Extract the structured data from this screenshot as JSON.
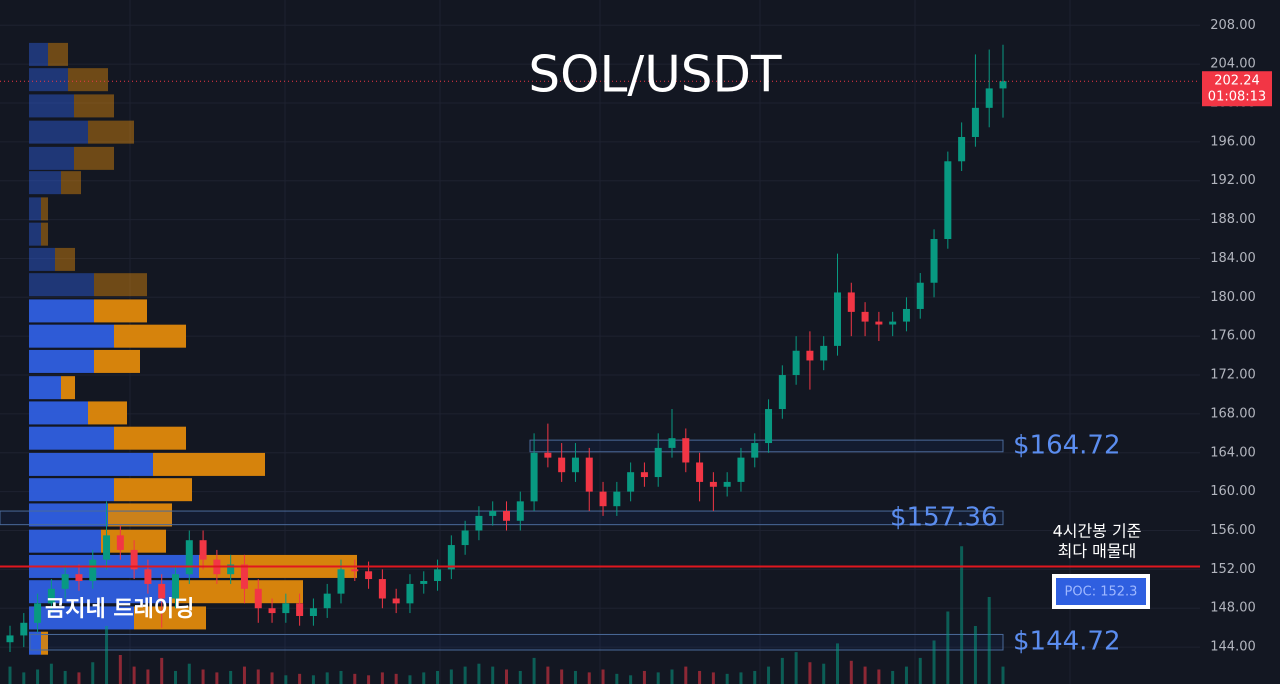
{
  "chart_data": {
    "type": "candlestick",
    "title": "SOL/USDT",
    "watermark": "곰지네 트레이딩",
    "ylim": [
      140.2,
      210.6
    ],
    "yticks": [
      {
        "value": 144,
        "label": "144.00"
      },
      {
        "value": 148,
        "label": "148.00"
      },
      {
        "value": 152,
        "label": "152.00"
      },
      {
        "value": 156,
        "label": "156.00"
      },
      {
        "value": 160,
        "label": "160.00"
      },
      {
        "value": 164,
        "label": "164.00"
      },
      {
        "value": 168,
        "label": "168.00"
      },
      {
        "value": 172,
        "label": "172.00"
      },
      {
        "value": 176,
        "label": "176.00"
      },
      {
        "value": 180,
        "label": "180.00"
      },
      {
        "value": 184,
        "label": "184.00"
      },
      {
        "value": 188,
        "label": "188.00"
      },
      {
        "value": 192,
        "label": "192.00"
      },
      {
        "value": 196,
        "label": "196.00"
      },
      {
        "value": 200,
        "label": "200.00"
      },
      {
        "value": 204,
        "label": "204.00"
      },
      {
        "value": 208,
        "label": "208.00"
      }
    ],
    "grid": true,
    "up_color": "#089981",
    "down_color": "#f23645",
    "open": [
      144.5,
      145.2,
      146.5,
      148.5,
      150,
      151.5,
      150.8,
      153,
      155.5,
      154,
      152,
      150.5,
      149,
      151.5,
      155,
      153,
      151.5,
      152.5,
      150,
      148,
      147.5,
      148.5,
      147.2,
      148,
      149.5,
      152,
      151.8,
      151,
      149,
      148.5,
      150.5,
      150.8,
      152,
      154.5,
      156,
      157.5,
      158,
      157,
      159,
      164,
      163.5,
      162,
      163.5,
      160,
      158.5,
      160,
      162,
      161.5,
      164.5,
      165.5,
      163,
      161,
      160.5,
      161,
      163.5,
      165,
      168.5,
      172,
      174.5,
      173.5,
      175,
      180.5,
      178.5,
      177.5,
      177.2,
      177.5,
      178.8,
      181.5,
      186,
      194,
      196.5,
      199.5,
      201.5
    ],
    "high": [
      146.2,
      147.5,
      149.5,
      151,
      152.5,
      152.5,
      154,
      159,
      156.5,
      155,
      153,
      151.5,
      152.5,
      156,
      156,
      154,
      153.5,
      153.5,
      151,
      149,
      149.5,
      149.5,
      149,
      150.5,
      153,
      153,
      152.8,
      152,
      150,
      151.5,
      151.8,
      153,
      155.5,
      157,
      158.5,
      159,
      159,
      160,
      166,
      167,
      165,
      165,
      164.5,
      161,
      161,
      163,
      163,
      166,
      168.5,
      166.5,
      164,
      162,
      162,
      164.5,
      166,
      169.5,
      173,
      176,
      176.5,
      176,
      184.5,
      181.5,
      179.5,
      178.5,
      178.5,
      180,
      182.5,
      187,
      195,
      198,
      205,
      205.5,
      206
    ],
    "low": [
      143.5,
      144,
      145.5,
      147.5,
      149,
      149.8,
      150,
      152,
      153,
      151,
      149.5,
      146,
      148,
      150.5,
      152,
      150.5,
      150.5,
      148.5,
      146.5,
      146.5,
      146.5,
      146.2,
      146.2,
      147,
      148.5,
      150.8,
      150,
      148,
      147.5,
      147.5,
      149.5,
      149.8,
      151,
      153.5,
      155,
      156.5,
      156,
      156,
      158,
      162.5,
      161,
      161,
      158,
      157.5,
      157.5,
      159,
      160.5,
      160.5,
      163.5,
      162,
      159,
      158,
      159.5,
      160,
      162.5,
      164,
      167.5,
      171,
      170.5,
      172.5,
      174,
      176,
      176,
      175.5,
      176,
      176.5,
      177.8,
      180,
      185,
      193,
      195.5,
      197.5,
      198.5
    ],
    "close": [
      145.2,
      146.5,
      148.5,
      150,
      151.5,
      150.8,
      153,
      155.5,
      154,
      152,
      150.5,
      149,
      151.5,
      155,
      153,
      151.5,
      152.5,
      150,
      148,
      147.5,
      148.5,
      147.2,
      148,
      149.5,
      152,
      151.8,
      151,
      149,
      148.5,
      150.5,
      150.8,
      152,
      154.5,
      156,
      157.5,
      158,
      157,
      159,
      164,
      163.5,
      162,
      163.5,
      160,
      158.5,
      160,
      162,
      161.5,
      164.5,
      165.5,
      163,
      161,
      160.5,
      161,
      163.5,
      165,
      168.5,
      172,
      174.5,
      173.5,
      175,
      180.5,
      178.5,
      177.5,
      177.2,
      177.5,
      178.8,
      181.5,
      186,
      194,
      196.5,
      199.5,
      201.5,
      202.24
    ],
    "volume": [
      12,
      8,
      10,
      14,
      9,
      8,
      15,
      40,
      20,
      12,
      10,
      18,
      9,
      14,
      10,
      8,
      9,
      12,
      10,
      8,
      6,
      7,
      6,
      8,
      9,
      7,
      6,
      8,
      7,
      6,
      8,
      9,
      10,
      12,
      14,
      12,
      10,
      9,
      18,
      12,
      10,
      9,
      8,
      10,
      7,
      6,
      9,
      8,
      10,
      12,
      9,
      8,
      7,
      8,
      9,
      12,
      18,
      22,
      15,
      14,
      28,
      16,
      12,
      10,
      9,
      12,
      18,
      30,
      50,
      95,
      40,
      60,
      12
    ],
    "volume_profile": {
      "price": [
        205.0,
        202.4,
        199.7,
        197.0,
        194.3,
        191.8,
        189.1,
        186.5,
        183.9,
        181.3,
        178.6,
        176.0,
        173.4,
        170.7,
        168.1,
        165.5,
        162.8,
        160.2,
        157.6,
        154.9,
        152.3,
        149.7,
        147.0,
        144.4
      ],
      "buy": [
        19,
        39,
        45,
        59,
        45,
        32,
        12,
        12,
        26,
        65,
        65,
        85,
        65,
        32,
        59,
        85,
        124,
        85,
        79,
        72,
        170,
        143,
        105,
        12
      ],
      "sell": [
        20,
        40,
        40,
        46,
        40,
        20,
        7,
        7,
        20,
        53,
        53,
        72,
        46,
        14,
        39,
        72,
        112,
        78,
        64,
        65,
        158,
        131,
        72,
        7
      ],
      "buy_color": "#2f5fe0",
      "sell_color": "#e0890c"
    },
    "zones": [
      {
        "label": "$164.72",
        "top": 165.3,
        "bottom": 164.1
      },
      {
        "label": "$157.36",
        "top": 158.0,
        "bottom": 156.6
      },
      {
        "label": "$144.72",
        "top": 145.3,
        "bottom": 143.7
      }
    ],
    "poc": {
      "value": 152.3,
      "label": "POC: 152.3",
      "note": [
        "4시간봉 기준",
        "최다 매물대"
      ]
    },
    "last_price": {
      "value": 202.24,
      "label": "202.24",
      "countdown": "01:08:13"
    }
  }
}
